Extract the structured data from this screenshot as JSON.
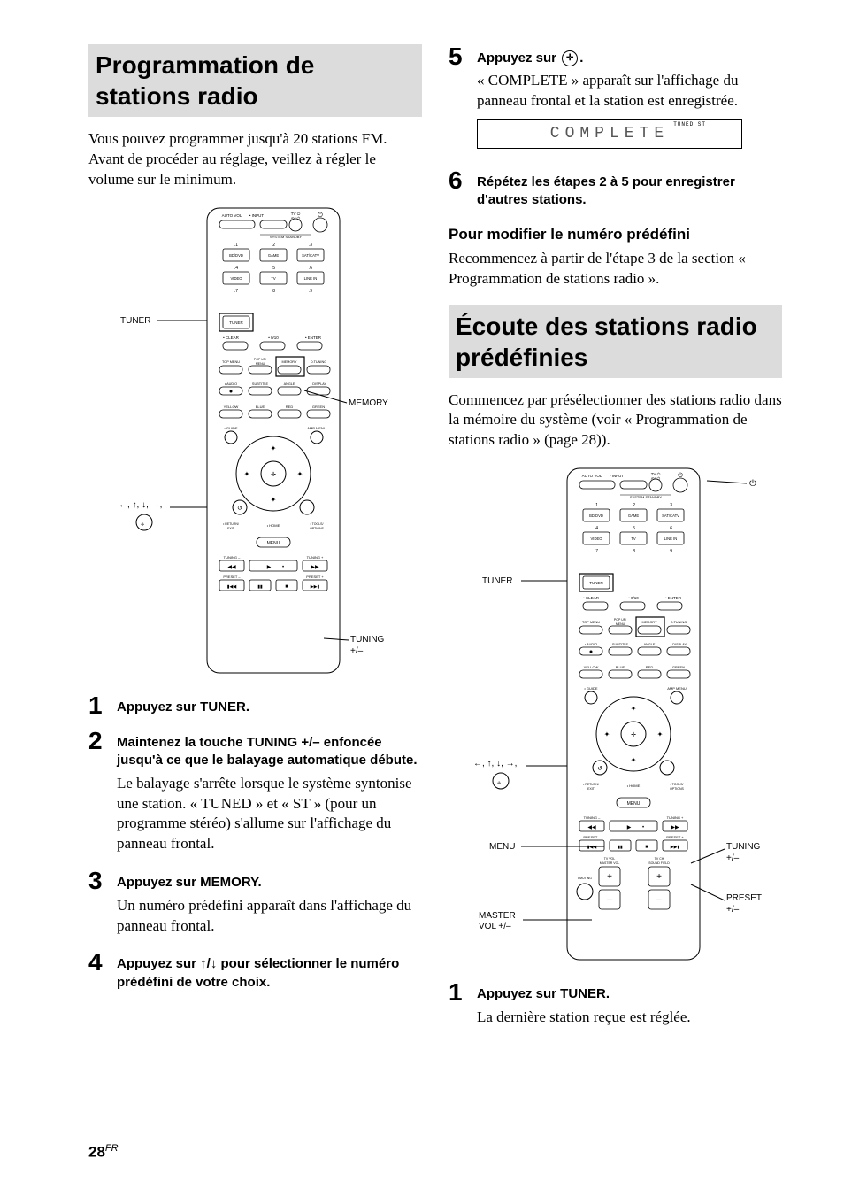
{
  "page": {
    "number": "28",
    "lang": "FR"
  },
  "colors": {
    "bg": "#ffffff",
    "text": "#000000",
    "title_bg": "#dcdcdc"
  },
  "left": {
    "title": "Programmation de stations radio",
    "intro": "Vous pouvez programmer jusqu'à 20 stations FM. Avant de procéder au réglage, veillez à régler le volume sur le minimum.",
    "remote_labels": {
      "tuner": "TUNER",
      "memory": "MEMORY",
      "arrows": "←, ↑, ↓, →,",
      "tuning": "TUNING +/–"
    },
    "steps": {
      "s1": {
        "n": "1",
        "head": "Appuyez sur TUNER."
      },
      "s2": {
        "n": "2",
        "head": "Maintenez la touche TUNING +/– enfoncée jusqu'à ce que le balayage automatique débute.",
        "para": "Le balayage s'arrête lorsque le système syntonise une station. « TUNED » et « ST » (pour un programme stéréo) s'allume sur l'affichage du panneau frontal."
      },
      "s3": {
        "n": "3",
        "head": "Appuyez sur MEMORY.",
        "para": "Un numéro prédéfini apparaît dans l'affichage du panneau frontal."
      },
      "s4": {
        "n": "4",
        "head": "Appuyez sur ↑/↓ pour sélectionner le numéro prédéfini de votre choix."
      }
    }
  },
  "right": {
    "steps_top": {
      "s5": {
        "n": "5",
        "head_pre": "Appuyez sur ",
        "head_post": ".",
        "para": "« COMPLETE » apparaît sur l'affichage du panneau frontal et la station est enregistrée."
      },
      "display_text": "COMPLETE",
      "display_flags": "TUNED   ST",
      "s6": {
        "n": "6",
        "head": "Répétez les étapes 2 à 5 pour enregistrer d'autres stations."
      }
    },
    "sub1": {
      "heading": "Pour modifier le numéro prédéfini",
      "para": "Recommencez à partir de l'étape 3 de la section « Programmation de stations radio »."
    },
    "section2": {
      "title": "Écoute des stations radio prédéfinies",
      "intro": "Commencez par présélectionner des stations radio dans la mémoire du système (voir « Programmation de stations radio » (page 28)).",
      "remote_labels": {
        "power": "⏻",
        "tuner": "TUNER",
        "arrows": "←, ↑, ↓, →,",
        "menu": "MENU",
        "mastervol": "MASTER VOL +/–",
        "tuning": "TUNING +/–",
        "preset": "PRESET +/–"
      },
      "steps": {
        "s1": {
          "n": "1",
          "head": "Appuyez sur TUNER.",
          "para": "La dernière station reçue est réglée."
        }
      }
    }
  },
  "remote_btns": {
    "row1": [
      "BD/DVD",
      "GAME",
      "SAT/\nCATV"
    ],
    "row2": [
      "VIDEO",
      "TV",
      "LINE IN"
    ],
    "tuner": "TUNER",
    "clear": "CLEAR",
    "zero": "0/10",
    "enter": "ENTER",
    "topmenu": "TOP MENU",
    "popup": "POP UP/\nMENU",
    "memory": "MEMORY",
    "dtuning": "D.TUNING",
    "audio": "AUDIO",
    "subtitle": "SUBTITLE",
    "angle": "ANGLE",
    "display": "DISPLAY",
    "yellow": "YELLOW",
    "blue": "BLUE",
    "red": "RED",
    "green": "GREEN",
    "guide": "GUIDE",
    "ampmenu": "AMP MENU",
    "return": "RETURN/\nEXIT",
    "home": "HOME",
    "tools": "TOOLS/\nOPTIONS",
    "menu": "MENU",
    "tuningm": "TUNING –",
    "tuningp": "TUNING +",
    "presetm": "PRESET –",
    "presetp": "PRESET +",
    "tvvol": "TV VOL\nMASTER VOL",
    "tvch": "TV CH\nSOUND FIELD",
    "muting": "MUTING",
    "autovol": "AUTO VOL",
    "input": "INPUT",
    "tvav": "TV ⏻\nAV ⏻",
    "pw": "⏻",
    "standby": "SYSTEM STANDBY",
    "dots": [
      ".1",
      ".2",
      ".3",
      ".4",
      ".5",
      ".6",
      ".7",
      ".8",
      ".9"
    ]
  }
}
